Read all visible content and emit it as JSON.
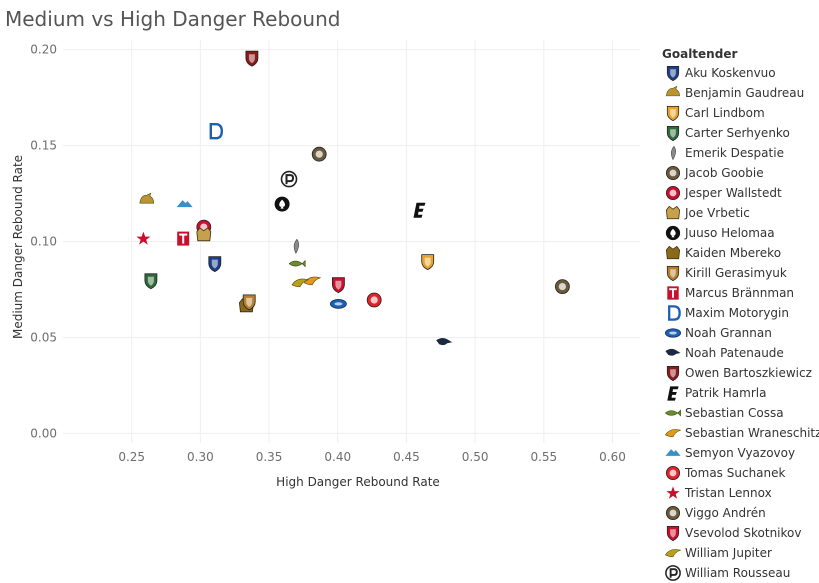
{
  "page": {
    "title": "Medium vs High Danger Rebound"
  },
  "chart_data": {
    "type": "scatter",
    "title": "Medium vs High Danger Rebound",
    "xlabel": "High Danger Rebound Rate",
    "ylabel": "Medium Danger Rebound Rate",
    "xlim": [
      0.2,
      0.62
    ],
    "ylim": [
      -0.005,
      0.205
    ],
    "x_ticks": [
      "0.25",
      "0.30",
      "0.35",
      "0.40",
      "0.45",
      "0.50",
      "0.55",
      "0.60"
    ],
    "y_ticks": [
      "0.00",
      "0.05",
      "0.10",
      "0.15",
      "0.20"
    ],
    "grid": true,
    "legend_title": "Goaltender",
    "legend_position": "right",
    "points": [
      {
        "name": "Aku Koskenvuo",
        "x": 0.3105,
        "y": 0.0885,
        "color": "#1d3f8a",
        "icon": "shield-logo-icon"
      },
      {
        "name": "Benjamin Gaudreau",
        "x": 0.261,
        "y": 0.1215,
        "color": "#b9952f",
        "icon": "animal-logo-icon"
      },
      {
        "name": "Carl Lindbom",
        "x": 0.4655,
        "y": 0.0895,
        "color": "#e8a42a",
        "icon": "shield-logo-icon"
      },
      {
        "name": "Carter Serhyenko",
        "x": 0.264,
        "y": 0.0795,
        "color": "#2f6b3a",
        "icon": "shield-logo-icon"
      },
      {
        "name": "Emerik Despatie",
        "x": 0.3695,
        "y": 0.0975,
        "color": "#8a8a8a",
        "icon": "feather-logo-icon"
      },
      {
        "name": "Jacob Goobie",
        "x": 0.3865,
        "y": 0.1455,
        "color": "#6b5a3a",
        "icon": "round-logo-icon"
      },
      {
        "name": "Jesper Wallstedt",
        "x": 0.3025,
        "y": 0.1075,
        "color": "#c8102e",
        "icon": "round-logo-icon"
      },
      {
        "name": "Joe Vrbetic",
        "x": 0.3025,
        "y": 0.1035,
        "color": "#c6a04a",
        "icon": "crest-logo-icon"
      },
      {
        "name": "Juuso Helomaa",
        "x": 0.3595,
        "y": 0.1195,
        "color": "#111111",
        "icon": "spade-logo-icon"
      },
      {
        "name": "Kaiden Mbereko",
        "x": 0.3335,
        "y": 0.0665,
        "color": "#8a6a1a",
        "icon": "crest-logo-icon"
      },
      {
        "name": "Kirill Gerasimyuk",
        "x": 0.3355,
        "y": 0.0685,
        "color": "#b77f2a",
        "icon": "shield-logo-icon"
      },
      {
        "name": "Marcus Brännman",
        "x": 0.2875,
        "y": 0.1015,
        "color": "#c8102e",
        "icon": "letter-t-logo-icon"
      },
      {
        "name": "Maxim Motorygin",
        "x": 0.3105,
        "y": 0.1575,
        "color": "#1d5fb0",
        "icon": "letter-d-logo-icon"
      },
      {
        "name": "Noah Grannan",
        "x": 0.4005,
        "y": 0.0675,
        "color": "#1d5fb0",
        "icon": "oval-logo-icon"
      },
      {
        "name": "Noah Patenaude",
        "x": 0.4775,
        "y": 0.0475,
        "color": "#1b2a40",
        "icon": "bird-logo-icon"
      },
      {
        "name": "Owen Bartoszkiewicz",
        "x": 0.3375,
        "y": 0.1955,
        "color": "#8b1a1a",
        "icon": "shield-logo-icon"
      },
      {
        "name": "Patrik Hamrla",
        "x": 0.4595,
        "y": 0.1165,
        "color": "#111111",
        "icon": "letter-e-logo-icon"
      },
      {
        "name": "Sebastian Cossa",
        "x": 0.3705,
        "y": 0.0885,
        "color": "#6a8f2a",
        "icon": "fish-logo-icon"
      },
      {
        "name": "Sebastian Wraneschitz",
        "x": 0.3815,
        "y": 0.0795,
        "color": "#e39a1b",
        "icon": "wing-logo-icon"
      },
      {
        "name": "Semyon Vyazovoy",
        "x": 0.2885,
        "y": 0.1195,
        "color": "#3a8fc8",
        "icon": "mountain-logo-icon"
      },
      {
        "name": "Tomas Suchanek",
        "x": 0.4265,
        "y": 0.0695,
        "color": "#e0242a",
        "icon": "round-logo-icon"
      },
      {
        "name": "Tristan Lennox",
        "x": 0.2585,
        "y": 0.1015,
        "color": "#c8102e",
        "icon": "star-logo-icon"
      },
      {
        "name": "Viggo Andrén",
        "x": 0.5635,
        "y": 0.0765,
        "color": "#6b5a3a",
        "icon": "round-logo-icon"
      },
      {
        "name": "Vsevolod Skotnikov",
        "x": 0.4005,
        "y": 0.0775,
        "color": "#c8102e",
        "icon": "shield-logo-icon"
      },
      {
        "name": "William Jupiter",
        "x": 0.3725,
        "y": 0.0785,
        "color": "#b8a21a",
        "icon": "wing-logo-icon"
      },
      {
        "name": "William Rousseau",
        "x": 0.3645,
        "y": 0.1325,
        "color": "#222222",
        "icon": "letter-p-logo-icon"
      }
    ]
  }
}
